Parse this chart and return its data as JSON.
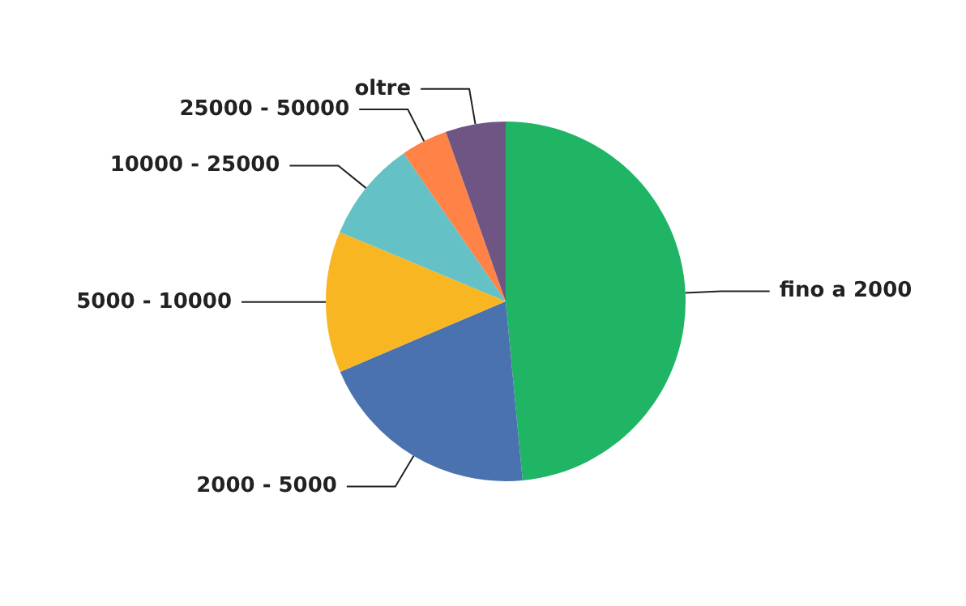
{
  "chart_data": {
    "type": "pie",
    "categories": [
      "fino a 2000",
      "2000 - 5000",
      "5000 - 10000",
      "10000 - 25000",
      "25000 - 50000",
      "oltre"
    ],
    "values": [
      48.5,
      20.1,
      12.7,
      9.1,
      4.2,
      5.4
    ],
    "colors": [
      "#1fb565",
      "#4a72ae",
      "#f8b623",
      "#64c1c6",
      "#ff8347",
      "#6f5583"
    ],
    "legend": false
  }
}
